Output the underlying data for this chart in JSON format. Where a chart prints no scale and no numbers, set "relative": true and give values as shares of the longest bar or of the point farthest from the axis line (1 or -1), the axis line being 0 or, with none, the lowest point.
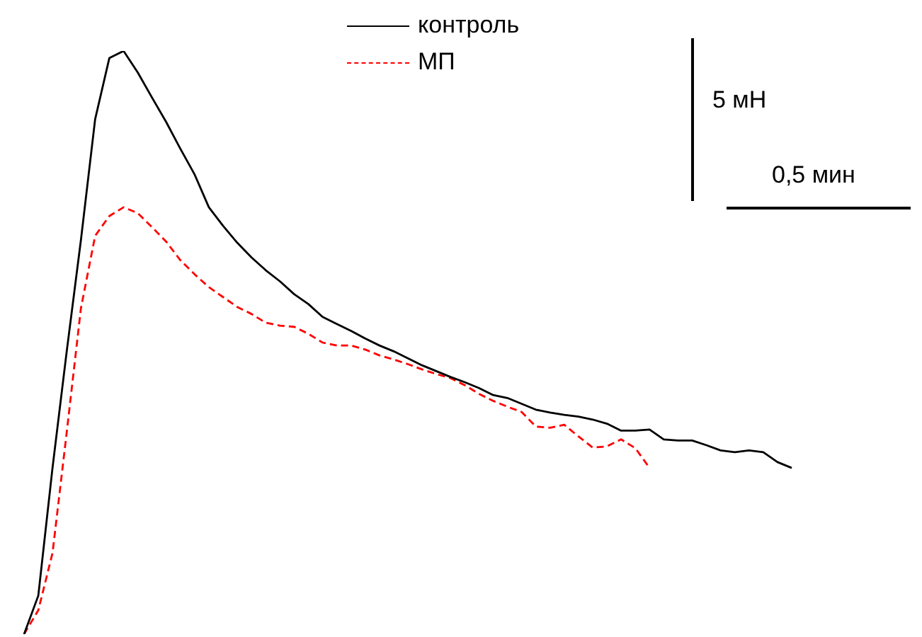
{
  "chart_data": {
    "type": "line",
    "relative": true,
    "legend": "top",
    "marker": "none",
    "grid": false,
    "tick_labels": false,
    "annotations": [
      "5 мН",
      "0,5 мин"
    ],
    "categories": [
      null,
      null,
      null,
      null,
      null,
      null,
      null,
      null,
      null,
      null,
      null,
      null,
      null,
      null,
      null,
      null,
      null,
      null,
      null,
      null,
      null,
      null,
      null,
      null,
      null,
      null,
      null,
      null,
      null,
      null,
      null,
      null,
      null,
      null,
      null,
      null,
      null,
      null,
      null,
      null,
      null,
      null,
      null,
      null,
      null,
      null,
      null,
      null,
      null,
      null,
      null,
      null,
      null,
      null,
      null
    ],
    "series": [
      {
        "name": "контроль",
        "color": "#000000",
        "line_style": "solid",
        "values": [
          0,
          0.066,
          0.285,
          0.485,
          0.676,
          0.883,
          0.988,
          1,
          0.963,
          0.92,
          0.878,
          0.832,
          0.788,
          0.732,
          0.7,
          0.671,
          0.646,
          0.624,
          0.605,
          0.583,
          0.566,
          0.544,
          0.532,
          0.52,
          0.507,
          0.495,
          0.485,
          0.473,
          0.461,
          0.451,
          0.441,
          0.432,
          0.422,
          0.41,
          0.405,
          0.395,
          0.385,
          0.38,
          0.376,
          0.373,
          0.368,
          0.361,
          0.349,
          0.349,
          0.351,
          0.334,
          0.332,
          0.332,
          0.324,
          0.315,
          0.312,
          0.315,
          0.312,
          0.295,
          0.285
        ]
      },
      {
        "name": "МП",
        "color": "#ff0000",
        "line_style": "dashed",
        "values": [
          0,
          0.041,
          0.139,
          0.346,
          0.559,
          0.683,
          0.717,
          0.732,
          0.722,
          0.698,
          0.673,
          0.641,
          0.617,
          0.595,
          0.578,
          0.561,
          0.549,
          0.534,
          0.529,
          0.527,
          0.515,
          0.5,
          0.495,
          0.495,
          0.488,
          0.478,
          0.471,
          0.463,
          0.454,
          0.446,
          0.439,
          0.427,
          0.412,
          0.4,
          0.39,
          0.381,
          0.356,
          0.354,
          0.359,
          0.339,
          0.32,
          0.322,
          0.334,
          0.319,
          0.285,
          null,
          null,
          null,
          null,
          null,
          null,
          null,
          null,
          null,
          null
        ]
      }
    ]
  }
}
